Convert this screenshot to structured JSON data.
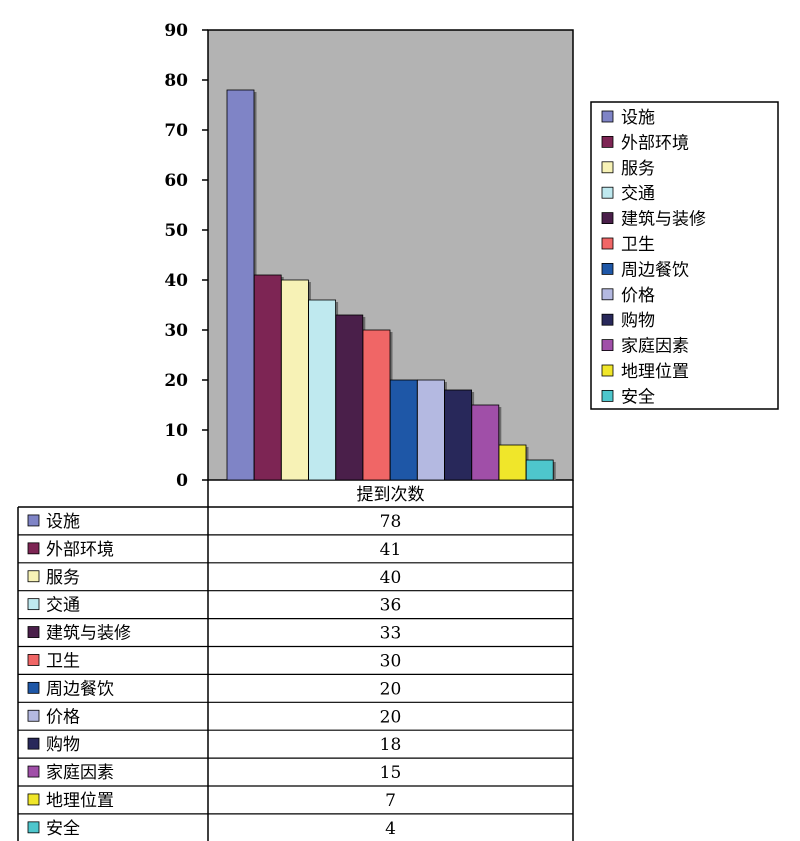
{
  "chart_data": {
    "type": "bar",
    "categories": [
      "设施",
      "外部环境",
      "服务",
      "交通",
      "建筑与装修",
      "卫生",
      "周边餐饮",
      "价格",
      "购物",
      "家庭因素",
      "地理位置",
      "安全"
    ],
    "series": [
      {
        "name": "提到次数",
        "values": [
          78,
          41,
          40,
          36,
          33,
          30,
          20,
          20,
          18,
          15,
          7,
          4
        ]
      }
    ],
    "colors": [
      "#7f84c6",
      "#7d2554",
      "#f7f2b6",
      "#bfe9ef",
      "#4a1f4a",
      "#f06666",
      "#1e57a7",
      "#b4b9e1",
      "#28285a",
      "#a04fa8",
      "#f0e62a",
      "#4ec6cc"
    ],
    "ylim": [
      0,
      90
    ],
    "yticks": [
      0,
      10,
      20,
      30,
      40,
      50,
      60,
      70,
      80,
      90
    ],
    "plot_background": "#b3b3b3",
    "legend_position": "right",
    "data_table": true
  }
}
